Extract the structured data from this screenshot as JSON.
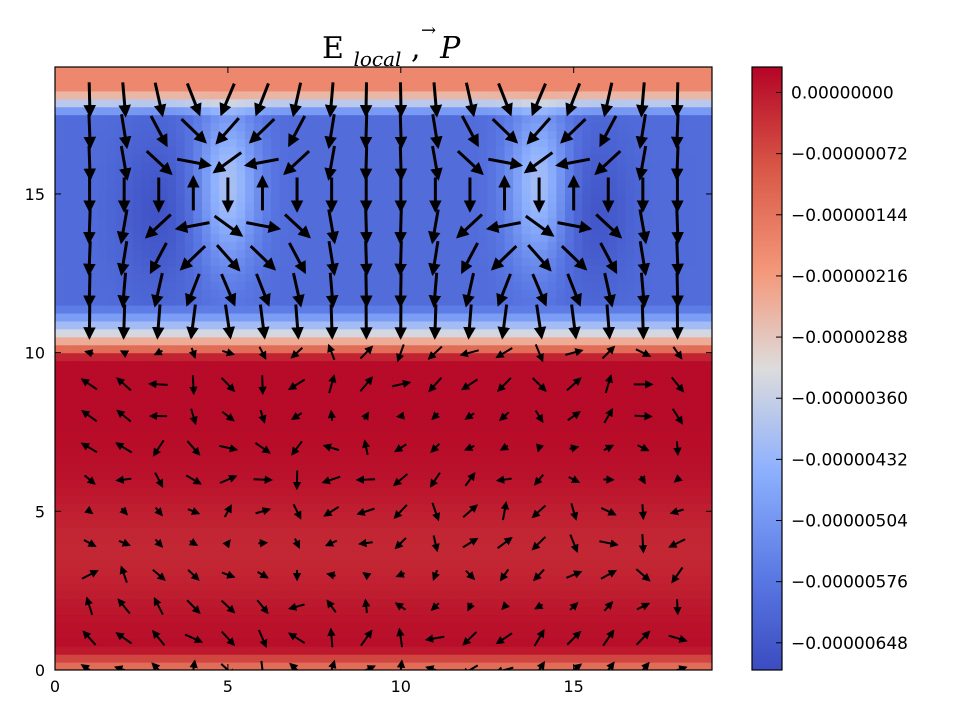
{
  "chart_data": {
    "type": "heatmap",
    "subtype": "filled-contour with quiver (vector field) overlay",
    "title": "E_local, P",
    "title_parts": {
      "main": "E",
      "subscript": "local",
      "separator": ",",
      "vector_symbol": "P",
      "vector_accent": "→"
    },
    "xlabel": "",
    "ylabel": "",
    "xlim": [
      0,
      19
    ],
    "ylim": [
      0,
      19
    ],
    "xticks": [
      "0",
      "5",
      "10",
      "15"
    ],
    "yticks": [
      "0",
      "5",
      "10",
      "15"
    ],
    "grid": false,
    "colormap": "coolwarm",
    "colorbar": {
      "min": -6.8e-06,
      "max": 3e-07,
      "ticks": [
        "0.00000000",
        "−0.00000072",
        "−0.00000144",
        "−0.00000216",
        "−0.00000288",
        "−0.00000360",
        "−0.00000432",
        "−0.00000504",
        "−0.00000576",
        "−0.00000648"
      ],
      "tick_values": [
        0,
        -7.2e-07,
        -1.44e-06,
        -2.16e-06,
        -2.88e-06,
        -3.6e-06,
        -4.32e-06,
        -5.04e-06,
        -5.76e-06,
        -6.48e-06
      ],
      "position": "right"
    },
    "field_description": {
      "regions": [
        {
          "y_range": [
            0,
            0.7
          ],
          "value": -1.6e-06
        },
        {
          "y_range": [
            0.7,
            10.5
          ],
          "value": 2e-07
        },
        {
          "y_range": [
            10.5,
            11.5
          ],
          "value": -3e-06
        },
        {
          "y_range": [
            11.5,
            18.3
          ],
          "value": -6e-06
        },
        {
          "y_range": [
            18.3,
            19
          ],
          "value": -1.8e-06
        }
      ],
      "low_value_columns_x": [
        3,
        15.5
      ],
      "light_loop_columns_x": [
        5,
        14
      ]
    },
    "quiver": {
      "grid_x": [
        1,
        2,
        3,
        4,
        5,
        6,
        7,
        8,
        9,
        10,
        11,
        12,
        13,
        14,
        15,
        16,
        17,
        18
      ],
      "grid_y": [
        0,
        1,
        2,
        3,
        4,
        5,
        6,
        7,
        8,
        9,
        10,
        11,
        12,
        13,
        14,
        15,
        16,
        17,
        18
      ],
      "loop_centers": [
        [
          5,
          15
        ],
        [
          14,
          15
        ]
      ],
      "upper_region_y_min": 10.5,
      "upper_arrow_length": 1.0,
      "lower_arrow_length_max": 0.55
    },
    "colors": {
      "deep_red": "#b40426",
      "red": "#c93a36",
      "salmon": "#ee8a6c",
      "neutral": "#dddcdc",
      "light_blue": "#aac7fd",
      "blue": "#5977e3",
      "deep_blue": "#3b4cc0",
      "arrow": "#000000"
    }
  }
}
